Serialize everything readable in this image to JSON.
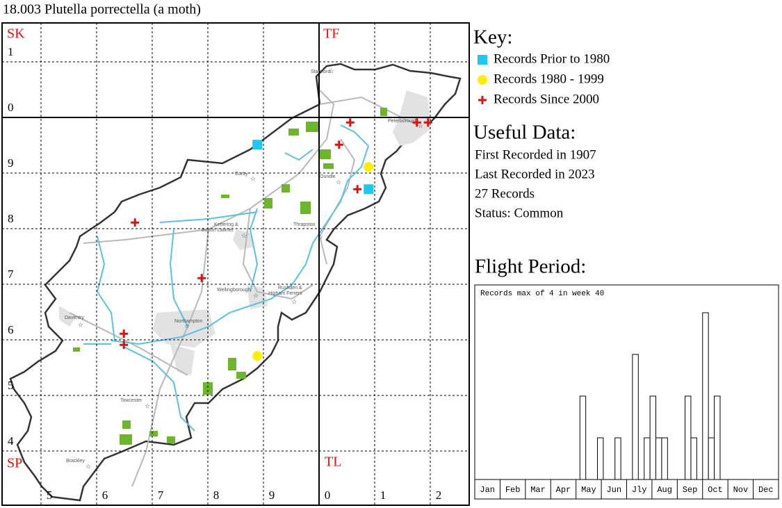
{
  "header": {
    "title": "18.003 Plutella porrectella (a moth)"
  },
  "map": {
    "xlim": [
      443,
      527
    ],
    "ylim": [
      231,
      317
    ],
    "xticks": [
      450,
      460,
      470,
      480,
      490,
      500,
      510,
      520
    ],
    "yticks": [
      240,
      250,
      260,
      270,
      280,
      290,
      300,
      310
    ],
    "major_x": [
      500
    ],
    "major_y": [
      300
    ],
    "column_labels": [
      {
        "value": 450,
        "label": "5"
      },
      {
        "value": 460,
        "label": "6"
      },
      {
        "value": 470,
        "label": "7"
      },
      {
        "value": 480,
        "label": "8"
      },
      {
        "value": 490,
        "label": "9"
      },
      {
        "value": 500,
        "label": "0"
      },
      {
        "value": 510,
        "label": "1"
      },
      {
        "value": 520,
        "label": "2"
      }
    ],
    "row_labels": [
      {
        "value": 240,
        "label": "4"
      },
      {
        "value": 250,
        "label": "5"
      },
      {
        "value": 260,
        "label": "6"
      },
      {
        "value": 270,
        "label": "7"
      },
      {
        "value": 280,
        "label": "8"
      },
      {
        "value": 290,
        "label": "9"
      },
      {
        "value": 300,
        "label": "0"
      },
      {
        "value": 310,
        "label": "1"
      }
    ],
    "squares": [
      "SK",
      "TF",
      "SP",
      "TL"
    ],
    "towns": [
      "Stamford",
      "Peterborough",
      "Corby",
      "Oundle",
      "Kettering &",
      "Burton Latimer",
      "Thrapston",
      "Wellingborough",
      "Rushden &",
      "Higham Ferrers",
      "Daventry",
      "Northampton",
      "Towcester",
      "Brackley"
    ],
    "records": [
      {
        "name": "Records Prior to 1980",
        "color": "#1ec8f0",
        "shape": "square",
        "points": [
          [
            488.9,
            295.1
          ],
          [
            508.9,
            287.1
          ]
        ]
      },
      {
        "name": "Records 1980 - 1999",
        "color": "#ffee00",
        "shape": "circle",
        "points": [
          [
            508.9,
            291.1
          ],
          [
            488.9,
            257.1
          ]
        ]
      },
      {
        "name": "Records Since 2000",
        "color": "#e01010",
        "shape": "cross",
        "points": [
          [
            505.6,
            299.1
          ],
          [
            517.6,
            299.1
          ],
          [
            519.6,
            299.1
          ],
          [
            503.6,
            295.1
          ],
          [
            506.9,
            287.1
          ],
          [
            466.9,
            281.1
          ],
          [
            478.9,
            271.1
          ],
          [
            464.9,
            261.1
          ],
          [
            464.9,
            259.1
          ]
        ]
      }
    ]
  },
  "key": {
    "title": "Key:"
  },
  "useful": {
    "title": "Useful Data:",
    "lines": [
      "First Recorded in 1907",
      "Last Recorded in 2023",
      "27 Records",
      "Status: Common"
    ]
  },
  "flight": {
    "title": "Flight Period:"
  },
  "chart_data": {
    "type": "bar",
    "title": "Records max of 4 in week 40",
    "categories": [
      "Jan",
      "Feb",
      "Mar",
      "Apr",
      "May",
      "Jun",
      "Jly",
      "Aug",
      "Sep",
      "Oct",
      "Nov",
      "Dec"
    ],
    "xlim": [
      1,
      53
    ],
    "x": [
      19,
      22,
      25,
      28,
      30,
      31,
      32,
      33,
      37,
      38,
      40,
      41,
      42
    ],
    "values": [
      2,
      1,
      1,
      3,
      1,
      2,
      1,
      1,
      2,
      1,
      4,
      1,
      2
    ]
  }
}
